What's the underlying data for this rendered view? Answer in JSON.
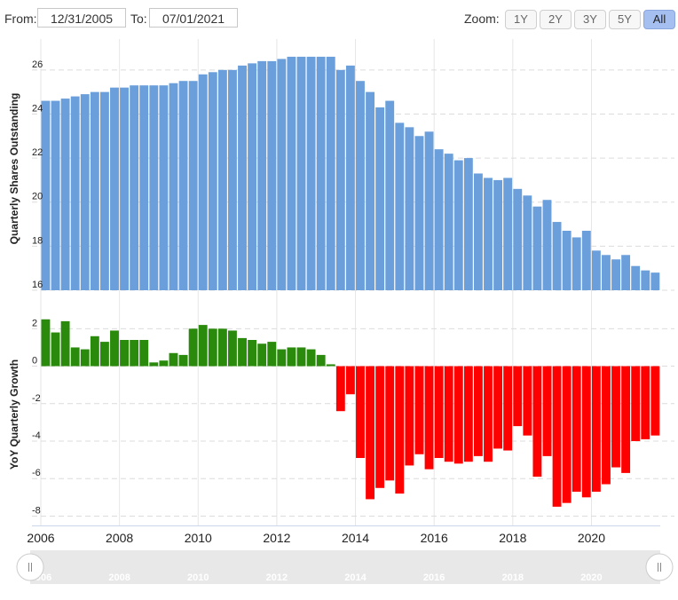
{
  "range": {
    "from_label": "From:",
    "from_value": "12/31/2005",
    "to_label": "To:",
    "to_value": "07/01/2021"
  },
  "zoom": {
    "label": "Zoom:",
    "buttons": [
      "1Y",
      "2Y",
      "3Y",
      "5Y",
      "All"
    ],
    "active": "All"
  },
  "colors": {
    "shares_bar": "#6a9fdb",
    "growth_positive": "#2a8a0c",
    "growth_negative": "#ff0000",
    "navigator_fill": "#e8e8e8"
  },
  "chart_data": [
    {
      "type": "bar",
      "ylabel": "Quarterly Shares Outstanding",
      "ylim": [
        16,
        27
      ],
      "yticks": [
        16,
        18,
        20,
        22,
        24,
        26
      ],
      "x_start": 2006.0,
      "x_step": 0.25,
      "values": [
        24.6,
        24.6,
        24.7,
        24.8,
        24.9,
        25.0,
        25.0,
        25.2,
        25.2,
        25.3,
        25.3,
        25.3,
        25.3,
        25.4,
        25.5,
        25.5,
        25.8,
        25.9,
        26.0,
        26.0,
        26.2,
        26.3,
        26.4,
        26.4,
        26.5,
        26.6,
        26.6,
        26.6,
        26.6,
        26.6,
        26.0,
        26.2,
        25.5,
        25.0,
        24.3,
        24.6,
        23.6,
        23.4,
        23.0,
        23.2,
        22.4,
        22.2,
        21.9,
        22.0,
        21.3,
        21.1,
        21.0,
        21.1,
        20.6,
        20.3,
        19.8,
        20.1,
        19.1,
        18.7,
        18.4,
        18.7,
        17.8,
        17.6,
        17.4,
        17.6,
        17.1,
        16.9,
        16.8
      ]
    },
    {
      "type": "bar",
      "ylabel": "YoY Quarterly Growth",
      "ylim": [
        -8.5,
        3.2
      ],
      "yticks": [
        -8,
        -6,
        -4,
        -2,
        0,
        2
      ],
      "x_start": 2006.0,
      "x_step": 0.25,
      "values": [
        2.5,
        1.8,
        2.4,
        1.0,
        0.9,
        1.6,
        1.3,
        1.9,
        1.4,
        1.4,
        1.4,
        0.2,
        0.3,
        0.7,
        0.6,
        2.0,
        2.2,
        2.0,
        2.0,
        1.9,
        1.5,
        1.4,
        1.2,
        1.3,
        0.9,
        1.0,
        1.0,
        0.9,
        0.6,
        0.1,
        -2.4,
        -1.5,
        -4.9,
        -7.1,
        -6.5,
        -6.1,
        -6.8,
        -5.3,
        -4.7,
        -5.5,
        -4.9,
        -5.1,
        -5.2,
        -5.1,
        -4.8,
        -5.1,
        -4.4,
        -4.5,
        -3.2,
        -3.7,
        -5.9,
        -4.8,
        -7.5,
        -7.3,
        -6.7,
        -7.0,
        -6.7,
        -6.3,
        -5.4,
        -5.7,
        -4.0,
        -3.9,
        -3.7
      ]
    }
  ],
  "x_axis": {
    "xlim": [
      2006.0,
      2021.75
    ],
    "year_labels": [
      "2006",
      "2008",
      "2010",
      "2012",
      "2014",
      "2016",
      "2018",
      "2020"
    ]
  },
  "navigator": {
    "year_labels": [
      "2006",
      "2008",
      "2010",
      "2012",
      "2014",
      "2016",
      "2018",
      "2020"
    ]
  }
}
